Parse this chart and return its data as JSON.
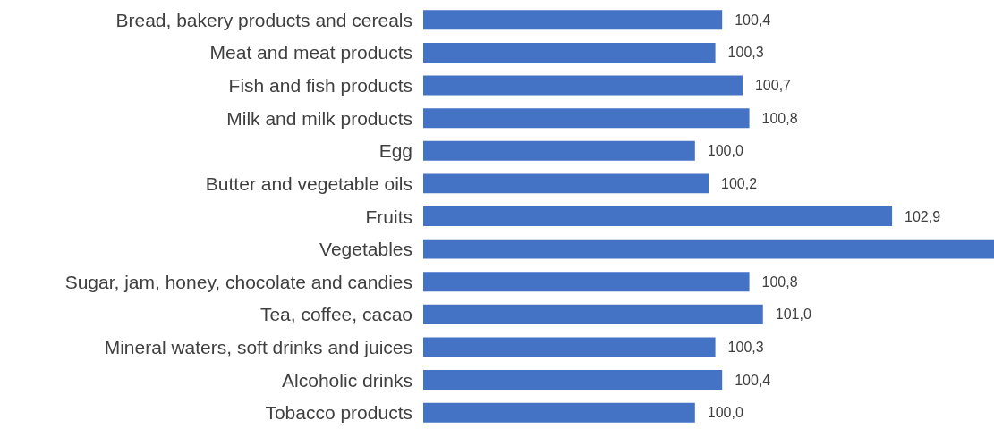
{
  "chart_data": {
    "type": "bar",
    "orientation": "horizontal",
    "categories": [
      "Bread, bakery products and cereals",
      "Meat and meat products",
      "Fish and fish products",
      "Milk and milk products",
      "Egg",
      "Butter and vegetable oils",
      "Fruits",
      "Vegetables",
      "Sugar, jam, honey, chocolate and candies",
      "Tea, coffee, cacao",
      "Mineral waters, soft drinks and juices",
      "Alcoholic drinks",
      "Tobacco products"
    ],
    "values": [
      100.4,
      100.3,
      100.7,
      100.8,
      100.0,
      100.2,
      102.9,
      104.4,
      100.8,
      101.0,
      100.3,
      100.4,
      100.0
    ],
    "value_labels": [
      "100,4",
      "100,3",
      "100,7",
      "100,8",
      "100,0",
      "100,2",
      "102,9",
      null,
      "100,8",
      "101,0",
      "100,3",
      "100,4",
      "100,0"
    ],
    "color": "#4472c4",
    "xlim": [
      96,
      104.4
    ],
    "tick_labels": "y"
  }
}
